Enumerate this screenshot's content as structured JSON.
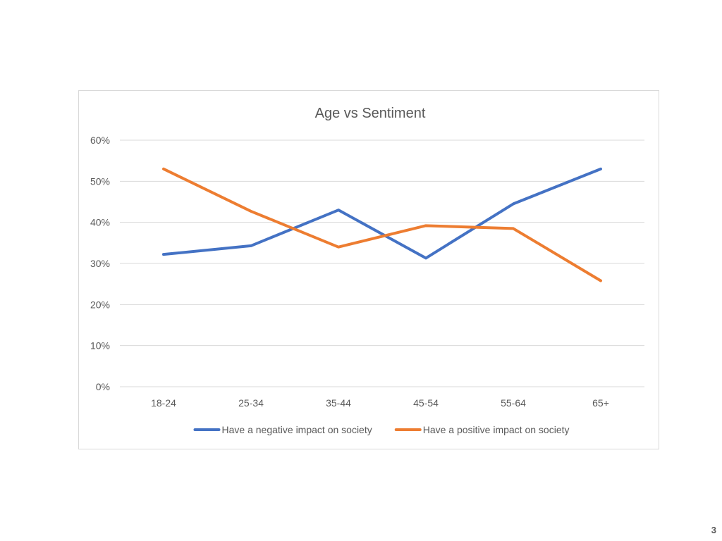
{
  "page_number": "3",
  "chart_data": {
    "type": "line",
    "title": "Age vs Sentiment",
    "xlabel": "",
    "ylabel": "",
    "categories": [
      "18-24",
      "25-34",
      "35-44",
      "45-54",
      "55-64",
      "65+"
    ],
    "y_ticks": [
      "0%",
      "10%",
      "20%",
      "30%",
      "40%",
      "50%",
      "60%"
    ],
    "ylim": [
      0,
      60
    ],
    "grid": true,
    "legend_position": "bottom",
    "series": [
      {
        "name": "Have a negative impact on society",
        "color": "#4472c4",
        "values": [
          32.2,
          34.3,
          43.0,
          31.3,
          44.5,
          53.0
        ]
      },
      {
        "name": "Have a positive impact on society",
        "color": "#ed7d31",
        "values": [
          53.0,
          42.7,
          34.0,
          39.2,
          38.5,
          25.8
        ]
      }
    ]
  }
}
